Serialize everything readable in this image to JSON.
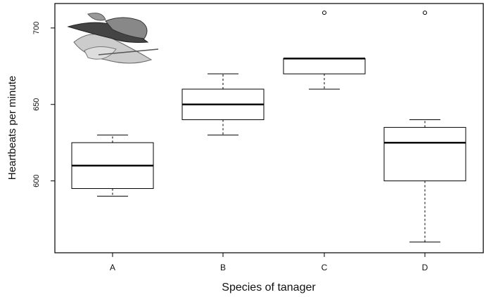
{
  "chart_data": {
    "type": "box",
    "y_label": "Heartbeats per minute",
    "x_label": "Species of tanager",
    "categories": [
      "A",
      "B",
      "C",
      "D"
    ],
    "boxes": [
      {
        "min": 590,
        "q1": 595,
        "median": 610,
        "q3": 625,
        "max": 630,
        "outliers": []
      },
      {
        "min": 630,
        "q1": 640,
        "median": 650,
        "q3": 660,
        "max": 670,
        "outliers": []
      },
      {
        "min": 660,
        "q1": 670,
        "median": 680,
        "q3": 680,
        "max": 680,
        "outliers": [
          710
        ]
      },
      {
        "min": 560,
        "q1": 600,
        "median": 625,
        "q3": 635,
        "max": 640,
        "outliers": [
          710
        ]
      }
    ],
    "color": "#000000",
    "ylim": [
      553,
      716
    ],
    "yticks": [
      600,
      650,
      700
    ]
  }
}
